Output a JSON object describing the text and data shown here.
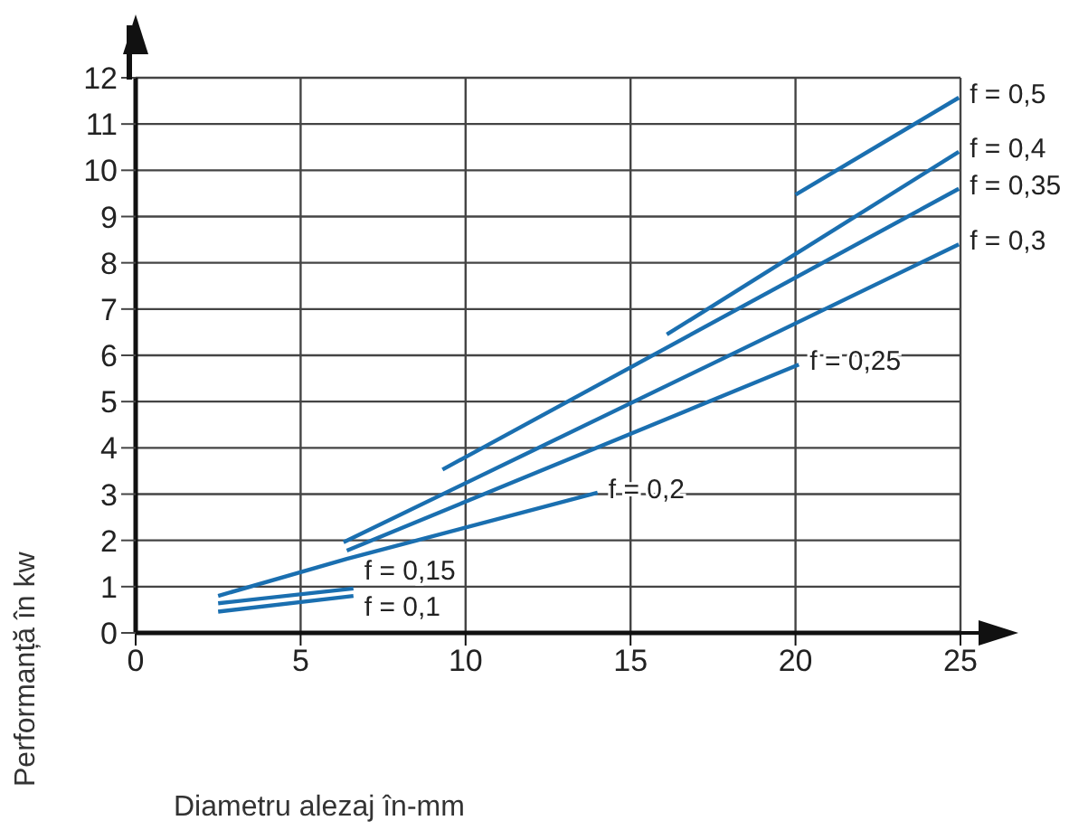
{
  "chart_data": {
    "type": "line",
    "xlabel": "Diametru alezaj în-mm",
    "ylabel": "Performanță în kw",
    "xlim": [
      0,
      25
    ],
    "ylim": [
      0,
      12
    ],
    "xticks": [
      0,
      5,
      10,
      15,
      20,
      25
    ],
    "yticks": [
      0,
      1,
      2,
      3,
      4,
      5,
      6,
      7,
      8,
      9,
      10,
      11,
      12
    ],
    "grid": true,
    "marker": "none",
    "line_style": "solid",
    "series": [
      {
        "name": "f = 0,5",
        "color": "#1a6fb0",
        "x": [
          20.0,
          24.95
        ],
        "values": [
          9.47,
          11.57
        ]
      },
      {
        "name": "f = 0,4",
        "color": "#1a6fb0",
        "x": [
          16.1,
          24.95
        ],
        "values": [
          6.45,
          10.4
        ]
      },
      {
        "name": "f = 0,35",
        "color": "#1a6fb0",
        "x": [
          9.3,
          24.95
        ],
        "values": [
          3.53,
          9.6
        ]
      },
      {
        "name": "f = 0,3",
        "color": "#1a6fb0",
        "x": [
          6.3,
          24.95
        ],
        "values": [
          1.96,
          8.4
        ]
      },
      {
        "name": "f = 0,25",
        "color": "#1a6fb0",
        "x": [
          6.4,
          20.1
        ],
        "values": [
          1.78,
          5.8
        ]
      },
      {
        "name": "f = 0,2",
        "color": "#1a6fb0",
        "x": [
          2.5,
          6.4,
          14.0
        ],
        "values": [
          0.8,
          1.6,
          3.03
        ]
      },
      {
        "name": "f = 0,15",
        "color": "#1a6fb0",
        "x": [
          2.5,
          6.6
        ],
        "values": [
          0.64,
          0.96
        ]
      },
      {
        "name": "f = 0,1",
        "color": "#1a6fb0",
        "x": [
          2.5,
          6.6
        ],
        "values": [
          0.46,
          0.8
        ]
      }
    ]
  }
}
